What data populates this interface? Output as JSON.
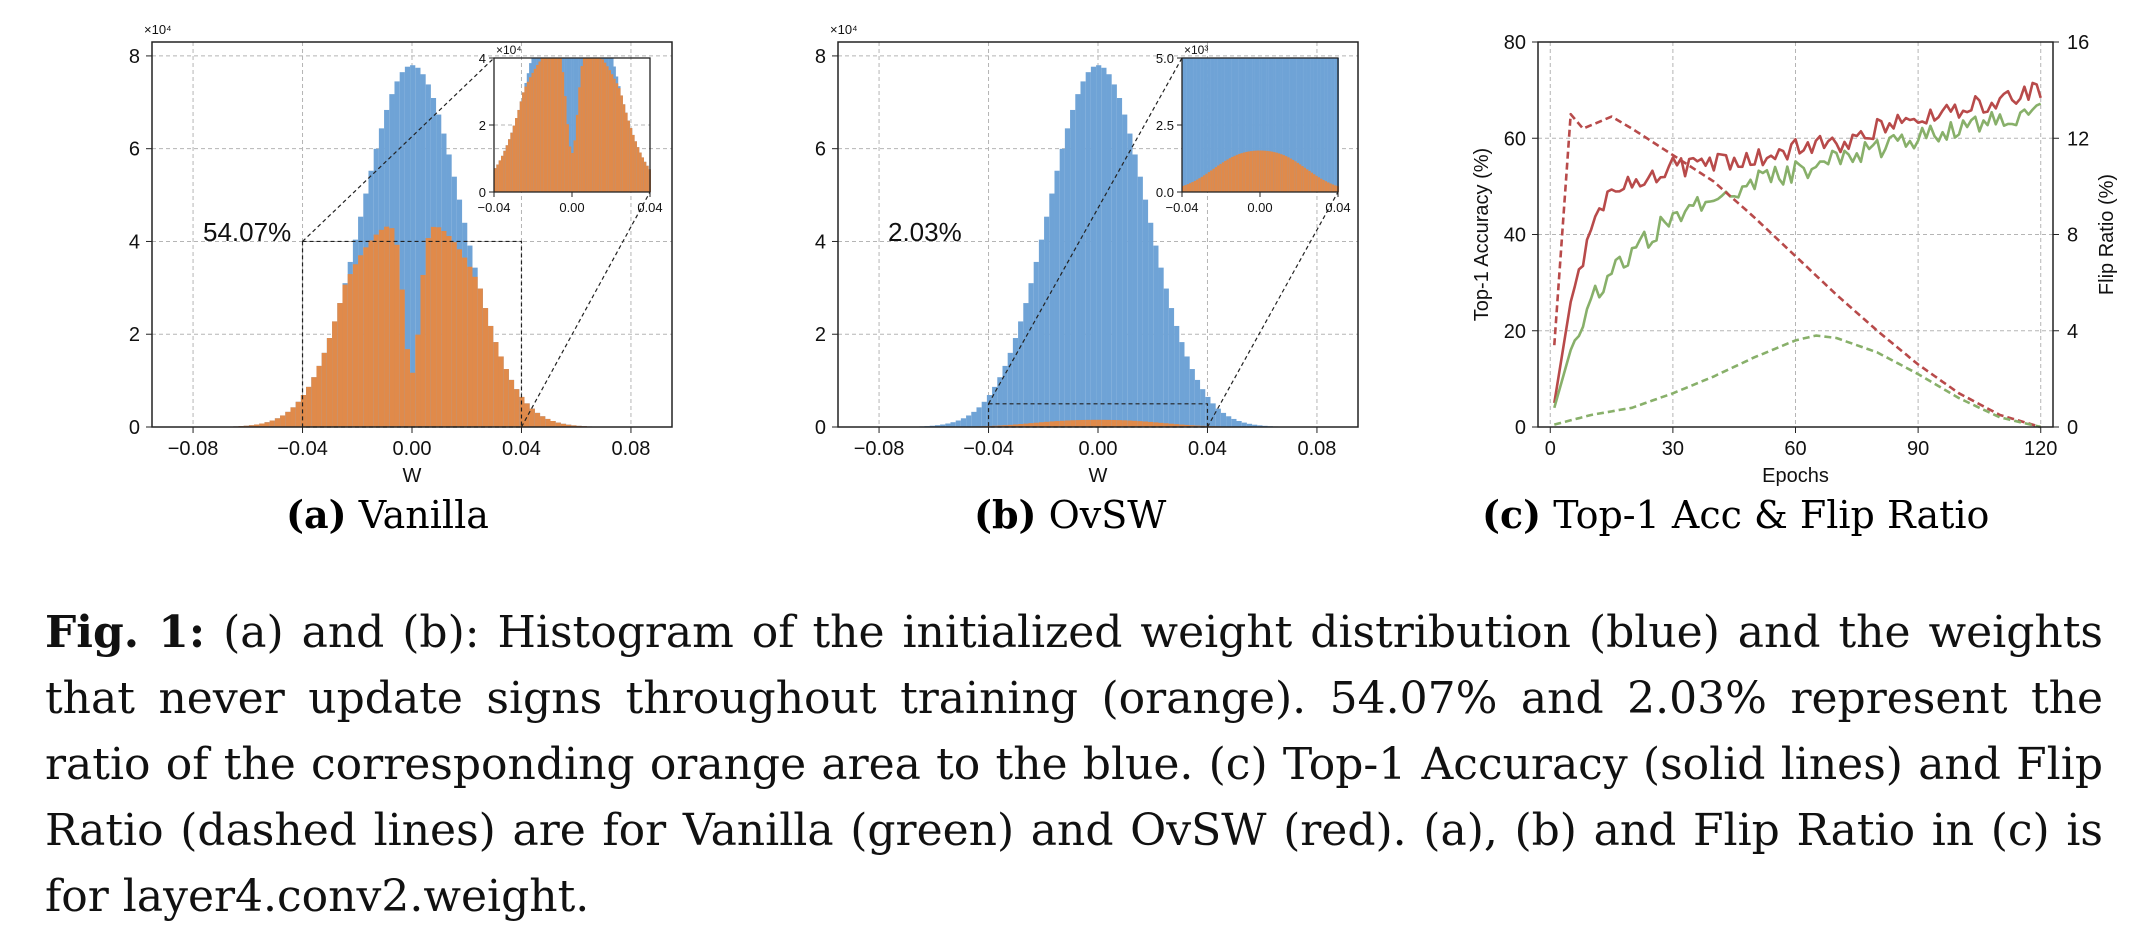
{
  "chart_data": [
    {
      "type": "bar",
      "title": "",
      "xlabel": "W",
      "ylabel": "",
      "y_multiplier": "×10⁴",
      "xlim": [
        -0.095,
        0.095
      ],
      "ylim": [
        0,
        8.3
      ],
      "xticks": [
        "−0.08",
        "−0.04",
        "0.00",
        "0.04",
        "0.08"
      ],
      "yticks": [
        "0",
        "2",
        "4",
        "6",
        "8"
      ],
      "annotation": "54.07%",
      "series": [
        {
          "name": "",
          "color": "#6fa3d6",
          "description_value": "initialized weights",
          "peak": 7.8,
          "sigma": 0.018
        },
        {
          "name": "",
          "color": "#e08a4a",
          "peak": 3.5,
          "modes": [
            -0.015,
            0.015
          ],
          "dip_at_zero": 0.9
        }
      ],
      "inset": {
        "y_multiplier": "×10⁴",
        "xticks": [
          "−0.04",
          "0.00",
          "0.04"
        ],
        "yticks": [
          "0",
          "2",
          "4"
        ],
        "ylim": [
          0,
          4
        ]
      },
      "grid": true
    },
    {
      "type": "bar",
      "title": "",
      "xlabel": "W",
      "ylabel": "",
      "y_multiplier": "×10⁴",
      "xlim": [
        -0.095,
        0.095
      ],
      "ylim": [
        0,
        8.3
      ],
      "xticks": [
        "−0.08",
        "−0.04",
        "0.00",
        "0.04",
        "0.08"
      ],
      "yticks": [
        "0",
        "2",
        "4",
        "6",
        "8"
      ],
      "annotation": "2.03%",
      "series": [
        {
          "name": "",
          "color": "#6fa3d6",
          "peak": 7.8,
          "sigma": 0.018
        },
        {
          "name": "",
          "color": "#e08a4a",
          "peak": 0.12
        }
      ],
      "inset": {
        "y_multiplier": "×10³",
        "xticks": [
          "−0.04",
          "0.00",
          "0.04"
        ],
        "yticks": [
          "0.0",
          "2.5",
          "5.0"
        ],
        "ylim": [
          0,
          5
        ]
      },
      "grid": true
    },
    {
      "type": "line",
      "title": "",
      "xlabel": "Epochs",
      "ylabel": "Top-1 Accuracy (%)",
      "y2label": "Flip Ratio (%)",
      "xlim": [
        -3,
        123
      ],
      "ylim": [
        0,
        80
      ],
      "y2lim": [
        0,
        16
      ],
      "xticks": [
        "0",
        "30",
        "60",
        "90",
        "120"
      ],
      "yticks": [
        "0",
        "20",
        "40",
        "60",
        "80"
      ],
      "y2ticks": [
        "0",
        "4",
        "8",
        "12",
        "16"
      ],
      "grid": true,
      "series": [
        {
          "name": "",
          "axis": "left",
          "style": "solid",
          "color": "#b84a4a",
          "x": [
            1,
            5,
            10,
            15,
            20,
            25,
            30,
            40,
            50,
            60,
            70,
            80,
            90,
            100,
            110,
            120
          ],
          "values": [
            5,
            26,
            42,
            48,
            51,
            52,
            54,
            55,
            56,
            58,
            59,
            62,
            64,
            66,
            68,
            70
          ]
        },
        {
          "name": "",
          "axis": "left",
          "style": "solid",
          "color": "#88b06a",
          "x": [
            1,
            5,
            10,
            15,
            20,
            25,
            30,
            40,
            50,
            60,
            70,
            80,
            90,
            100,
            110,
            120
          ],
          "values": [
            4,
            16,
            26,
            32,
            36,
            40,
            44,
            48,
            51,
            53,
            56,
            58,
            60,
            62,
            64,
            66
          ]
        },
        {
          "name": "",
          "axis": "right",
          "style": "dashed",
          "color": "#b84a4a",
          "x": [
            1,
            5,
            8,
            15,
            20,
            30,
            40,
            50,
            60,
            70,
            80,
            90,
            100,
            110,
            120
          ],
          "values": [
            3.4,
            13,
            12.4,
            12.9,
            12.4,
            11.3,
            10.2,
            8.7,
            7.1,
            5.5,
            4.0,
            2.6,
            1.4,
            0.5,
            0.0
          ]
        },
        {
          "name": "",
          "axis": "right",
          "style": "dashed",
          "color": "#88b06a",
          "x": [
            1,
            10,
            20,
            30,
            40,
            50,
            60,
            65,
            70,
            80,
            90,
            100,
            110,
            120
          ],
          "values": [
            0.1,
            0.5,
            0.8,
            1.4,
            2.1,
            2.9,
            3.6,
            3.8,
            3.7,
            3.1,
            2.2,
            1.2,
            0.4,
            0.0
          ]
        }
      ]
    }
  ],
  "subcaptions": {
    "a_tag": "(a)",
    "a_text": "Vanilla",
    "b_tag": "(b)",
    "b_text": "OvSW",
    "c_tag": "(c)",
    "c_text": "Top-1 Acc & Flip Ratio"
  },
  "caption": {
    "label": "Fig. 1:",
    "text": "(a) and (b): Histogram of the initialized weight distribution (blue) and the weights that never update signs throughout training (orange). 54.07% and 2.03% represent the ratio of the corresponding orange area to the blue. (c) Top-1 Accuracy (solid lines) and Flip Ratio (dashed lines) are for Vanilla (green) and OvSW (red). (a), (b) and Flip Ratio in (c) is for layer4.conv2.weight."
  }
}
